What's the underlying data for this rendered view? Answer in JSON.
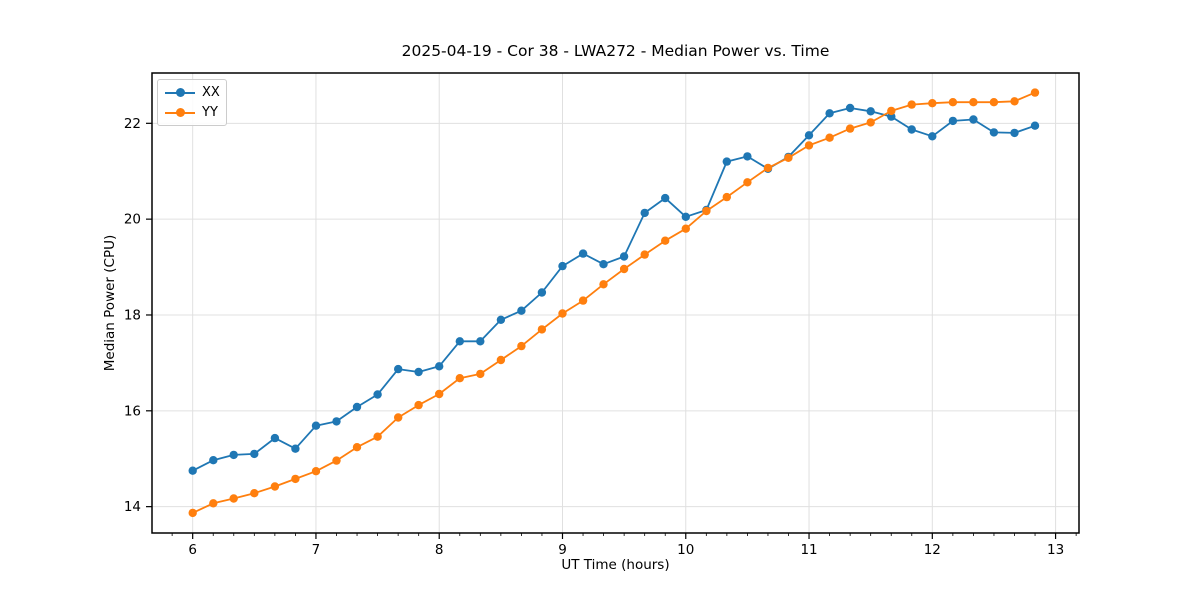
{
  "chart_data": {
    "type": "line",
    "title": "2025-04-19 - Cor 38 - LWA272 - Median Power vs. Time",
    "xlabel": "UT Time (hours)",
    "ylabel": "Median Power (CPU)",
    "x": [
      6,
      6.167,
      6.333,
      6.5,
      6.667,
      6.833,
      7,
      7.167,
      7.333,
      7.5,
      7.667,
      7.833,
      8,
      8.167,
      8.333,
      8.5,
      8.667,
      8.833,
      9,
      9.167,
      9.333,
      9.5,
      9.667,
      9.833,
      10,
      10.167,
      10.333,
      10.5,
      10.667,
      10.833,
      11,
      11.167,
      11.333,
      11.5,
      11.667,
      11.833,
      12,
      12.167,
      12.333,
      12.5,
      12.667,
      12.833
    ],
    "series": [
      {
        "name": "XX",
        "color": "#1f77b4",
        "values": [
          14.75,
          14.97,
          15.08,
          15.1,
          15.43,
          15.21,
          15.69,
          15.78,
          16.08,
          16.34,
          16.87,
          16.81,
          16.93,
          17.45,
          17.45,
          17.9,
          18.09,
          18.47,
          19.02,
          19.28,
          19.06,
          19.22,
          20.13,
          20.44,
          20.05,
          20.19,
          21.2,
          21.31,
          21.05,
          21.3,
          21.75,
          22.21,
          22.32,
          22.25,
          22.14,
          21.87,
          21.73,
          22.05,
          22.08,
          21.81,
          21.8,
          21.95
        ]
      },
      {
        "name": "YY",
        "color": "#ff7f0e",
        "values": [
          13.87,
          14.07,
          14.17,
          14.28,
          14.42,
          14.58,
          14.74,
          14.96,
          15.24,
          15.46,
          15.86,
          16.12,
          16.35,
          16.68,
          16.77,
          17.06,
          17.35,
          17.7,
          18.03,
          18.3,
          18.64,
          18.96,
          19.26,
          19.55,
          19.8,
          20.17,
          20.46,
          20.77,
          21.07,
          21.28,
          21.54,
          21.7,
          21.89,
          22.02,
          22.26,
          22.39,
          22.42,
          22.44,
          22.44,
          22.44,
          22.46,
          22.64
        ]
      }
    ],
    "xlim": [
      5.67,
      13.19
    ],
    "ylim": [
      13.45,
      23.05
    ],
    "xticks": [
      6,
      7,
      8,
      9,
      10,
      11,
      12,
      13
    ],
    "yticks": [
      14,
      16,
      18,
      20,
      22
    ],
    "x_minor_step": 0.16667,
    "grid": true,
    "legend_position": "upper left",
    "colors": {
      "grid": "#e0e0e0",
      "spine": "#000000",
      "tick_label": "#000000",
      "background": "#ffffff"
    }
  }
}
